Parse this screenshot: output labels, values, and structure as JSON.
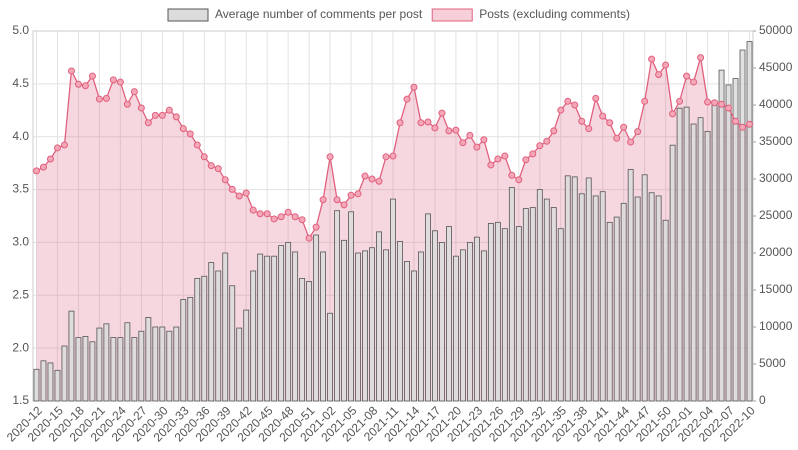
{
  "chart_data": {
    "type": "combo",
    "categories": [
      "2020-12",
      null,
      null,
      "2020-15",
      null,
      null,
      "2020-18",
      null,
      null,
      "2020-21",
      null,
      null,
      "2020-24",
      null,
      null,
      "2020-27",
      null,
      null,
      "2020-30",
      null,
      null,
      "2020-33",
      null,
      null,
      "2020-36",
      null,
      null,
      "2020-39",
      null,
      null,
      "2020-42",
      null,
      null,
      "2020-45",
      null,
      null,
      "2020-48",
      null,
      null,
      "2020-51",
      null,
      null,
      "2021-02",
      null,
      null,
      "2021-05",
      null,
      null,
      "2021-08",
      null,
      null,
      "2021-11",
      null,
      null,
      "2021-14",
      null,
      null,
      "2021-17",
      null,
      null,
      "2021-20",
      null,
      null,
      "2021-23",
      null,
      null,
      "2021-26",
      null,
      null,
      "2021-29",
      null,
      null,
      "2021-32",
      null,
      null,
      "2021-35",
      null,
      null,
      "2021-38",
      null,
      null,
      "2021-41",
      null,
      null,
      "2021-44",
      null,
      null,
      "2021-47",
      null,
      null,
      "2021-50",
      null,
      null,
      "2022-01",
      null,
      null,
      "2022-04",
      null,
      null,
      "2022-07",
      null,
      null,
      "2022-10"
    ],
    "series": [
      {
        "name": "Average number of comments per post",
        "type": "bar",
        "color": "#dcdcdc",
        "axis": "y",
        "values": [
          1.8,
          1.88,
          1.86,
          1.79,
          2.02,
          2.35,
          2.1,
          2.11,
          2.06,
          2.19,
          2.23,
          2.1,
          2.1,
          2.24,
          2.1,
          2.16,
          2.29,
          2.2,
          2.2,
          2.16,
          2.2,
          2.46,
          2.48,
          2.66,
          2.68,
          2.81,
          2.73,
          2.9,
          2.59,
          2.19,
          2.36,
          2.73,
          2.89,
          2.87,
          2.87,
          2.97,
          3.0,
          2.91,
          2.66,
          2.63,
          3.07,
          2.91,
          2.33,
          3.3,
          3.02,
          3.29,
          2.9,
          2.92,
          2.95,
          3.1,
          2.93,
          3.41,
          3.01,
          2.82,
          2.73,
          2.91,
          3.27,
          3.11,
          3.0,
          3.15,
          2.87,
          2.93,
          3.0,
          3.05,
          2.92,
          3.18,
          3.19,
          3.13,
          3.52,
          3.15,
          3.32,
          3.33,
          3.5,
          3.41,
          3.33,
          3.13,
          3.63,
          3.62,
          3.46,
          3.61,
          3.44,
          3.48,
          3.19,
          3.24,
          3.37,
          3.69,
          3.43,
          3.64,
          3.47,
          3.44,
          3.21,
          3.92,
          4.27,
          4.28,
          4.12,
          4.18,
          4.05,
          4.31,
          4.63,
          4.49,
          4.55,
          4.82,
          4.9
        ]
      },
      {
        "name": "Posts (excluding comments)",
        "type": "area",
        "color": "#e0607e",
        "axis": "y2",
        "values": [
          31100,
          31600,
          32700,
          34200,
          34600,
          44600,
          42800,
          42600,
          43900,
          40800,
          40900,
          43400,
          43100,
          40100,
          41800,
          39600,
          37600,
          38600,
          38600,
          39300,
          38400,
          36800,
          36100,
          34600,
          33000,
          31800,
          31400,
          29900,
          28600,
          27700,
          28100,
          25800,
          25300,
          25300,
          24600,
          24900,
          25500,
          24900,
          24500,
          22000,
          23500,
          27200,
          33000,
          27200,
          26500,
          27800,
          28000,
          30400,
          30000,
          29700,
          33000,
          33100,
          37600,
          40800,
          42400,
          37600,
          37700,
          36900,
          38900,
          36500,
          36600,
          34900,
          35900,
          34300,
          35300,
          31900,
          32700,
          33100,
          30500,
          29900,
          32600,
          33400,
          34500,
          35100,
          36500,
          39300,
          40500,
          40000,
          37800,
          36800,
          40900,
          38500,
          37600,
          35500,
          37000,
          35000,
          36400,
          40500,
          46200,
          44100,
          45400,
          38800,
          40500,
          43900,
          43100,
          46400,
          40400,
          40300,
          40100,
          39600,
          37800,
          37000,
          37400
        ]
      }
    ],
    "ylim": [
      1.5,
      5.0
    ],
    "yticks": [
      {
        "value": 1.5,
        "label": "1.5"
      },
      {
        "value": 2.0,
        "label": "2.0"
      },
      {
        "value": 2.5,
        "label": "2.5"
      },
      {
        "value": 3.0,
        "label": "3.0"
      },
      {
        "value": 3.5,
        "label": "3.5"
      },
      {
        "value": 4.0,
        "label": "4.0"
      },
      {
        "value": 4.5,
        "label": "4.5"
      },
      {
        "value": 5.0,
        "label": "5.0"
      }
    ],
    "y2lim": [
      0,
      50000
    ],
    "y2ticks": [
      0,
      5000,
      10000,
      15000,
      20000,
      25000,
      30000,
      35000,
      40000,
      45000,
      50000
    ],
    "grid": true,
    "legend": "top"
  }
}
